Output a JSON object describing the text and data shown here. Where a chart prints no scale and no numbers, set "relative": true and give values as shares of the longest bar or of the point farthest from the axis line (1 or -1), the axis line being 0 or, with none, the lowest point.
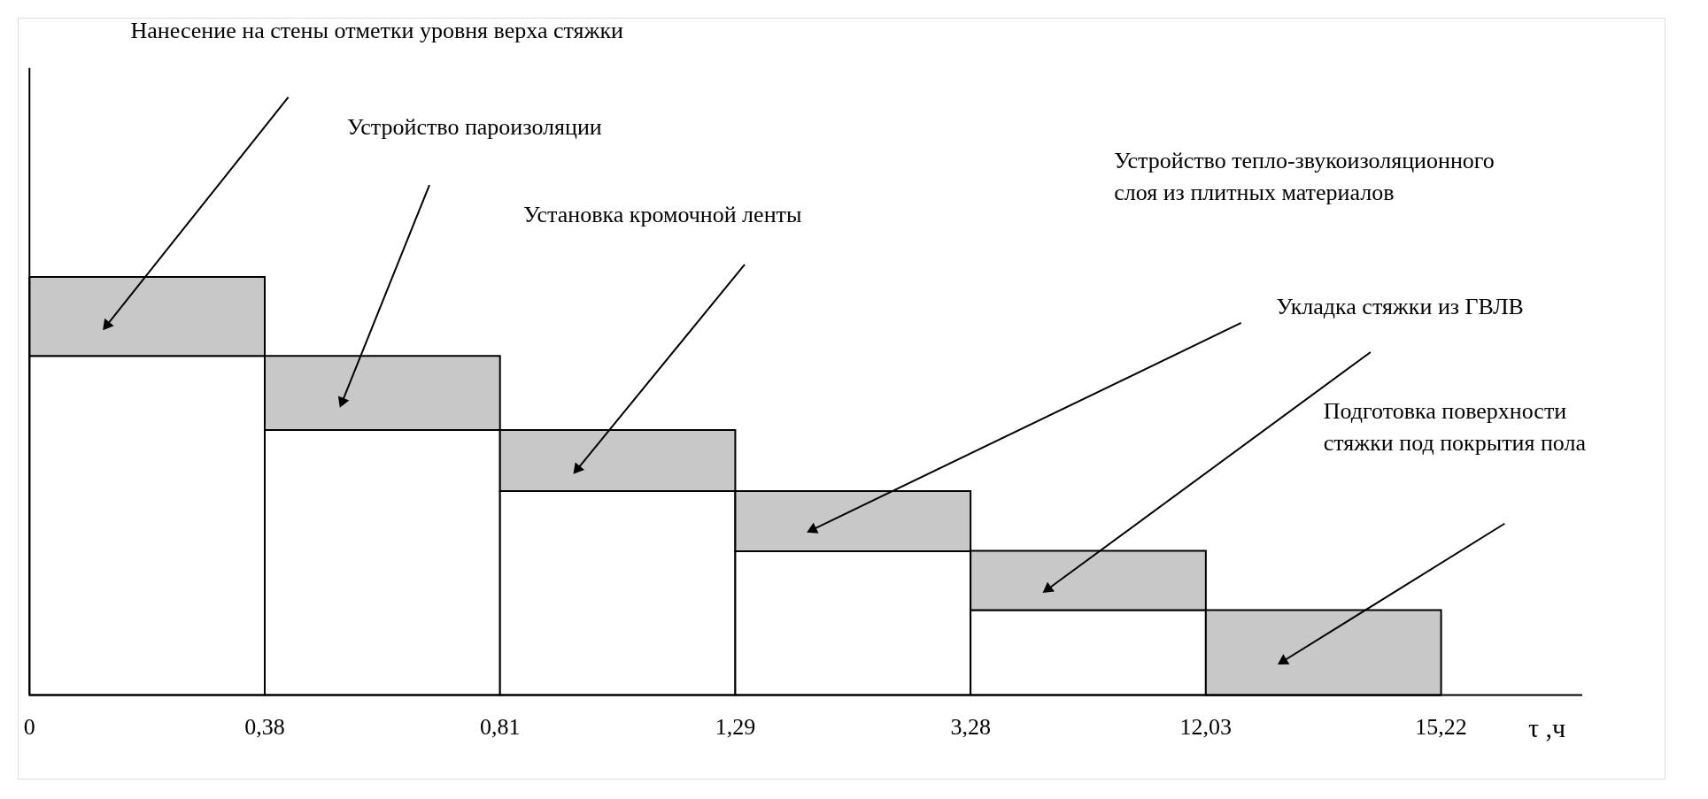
{
  "chart_data": {
    "type": "bar",
    "stacked": true,
    "relative": true,
    "categories": [
      null,
      null,
      null,
      null,
      null,
      null
    ],
    "series": [
      {
        "color": "#ffffff",
        "values": [
          0.811,
          0.634,
          0.488,
          0.344,
          0.203,
          0
        ]
      },
      {
        "color": "#c8c8c8",
        "values": [
          0.189,
          0.177,
          0.146,
          0.144,
          0.142,
          0.203
        ]
      }
    ],
    "xlabel": "τ ,ч",
    "annotations": [
      "Нанесение на стены отметки уровня верха стяжки",
      "Устройство пароизоляции",
      "Установка кромочной ленты",
      "Устройство тепло-звукоизоляционного\nслоя из плитных материалов",
      "Укладка стяжки из ГВЛВ",
      "Подготовка поверхности\nстяжки под покрытия пола",
      "0",
      "0,38",
      "0,81",
      "1,29",
      "3,28",
      "12,03",
      "15,22"
    ]
  }
}
